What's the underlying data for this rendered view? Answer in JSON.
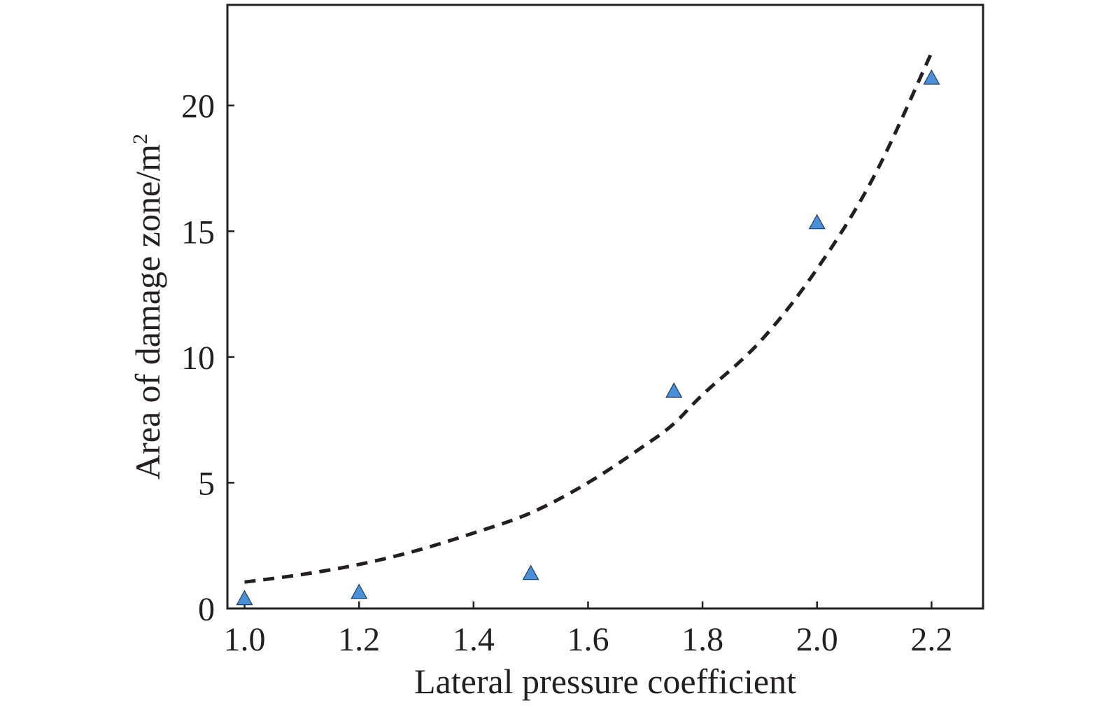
{
  "chart_data": {
    "type": "scatter",
    "title": "",
    "xlabel": "Lateral pressure coefficient",
    "ylabel": "Area of damage zone/m",
    "ylabel_superscript": "2",
    "xlim": [
      0.97,
      2.29
    ],
    "ylim": [
      0,
      24
    ],
    "x_ticks": [
      1.0,
      1.2,
      1.4,
      1.6,
      1.8,
      2.0,
      2.2
    ],
    "x_tick_labels": [
      "1.0",
      "1.2",
      "1.4",
      "1.6",
      "1.8",
      "2.0",
      "2.2"
    ],
    "y_ticks": [
      0,
      5,
      10,
      15,
      20
    ],
    "y_tick_labels": [
      "0",
      "5",
      "10",
      "15",
      "20"
    ],
    "grid": false,
    "series": [
      {
        "marker": "triangle",
        "color": "#4a90d9",
        "x": [
          1.0,
          1.2,
          1.5,
          1.75,
          2.0,
          2.2
        ],
        "y": [
          0.4,
          0.65,
          1.4,
          8.65,
          15.35,
          21.1
        ]
      }
    ],
    "trendline": {
      "style": "dashed",
      "color": "#231f20",
      "x": [
        1.0,
        1.1,
        1.2,
        1.3,
        1.4,
        1.5,
        1.6,
        1.7,
        1.75,
        1.8,
        1.9,
        2.0,
        2.1,
        2.2
      ],
      "y": [
        1.05,
        1.35,
        1.75,
        2.3,
        3.0,
        3.8,
        5.0,
        6.5,
        7.35,
        8.5,
        10.6,
        13.5,
        17.2,
        22.1
      ]
    }
  }
}
